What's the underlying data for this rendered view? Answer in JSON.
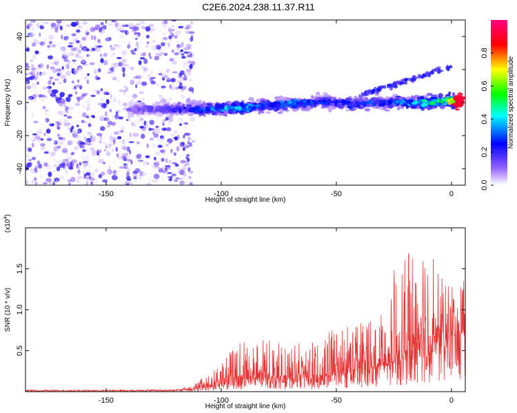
{
  "title": "C2E6.2024.238.11.37.R11",
  "chart_data": [
    {
      "type": "heatmap",
      "xlabel": "Height of straight line (km)",
      "ylabel": "Frequency (Hz)",
      "xlim": [
        -185,
        6
      ],
      "ylim": [
        -50,
        50
      ],
      "xticks": [
        -150,
        -100,
        -50,
        0
      ],
      "yticks": [
        -40,
        -20,
        0,
        20,
        40
      ],
      "colorbar": {
        "label": "Normalized spectral amplitude",
        "range": [
          0,
          1
        ],
        "ticks": [
          "0.0",
          "0.2",
          "0.4",
          "0.6",
          "0.8"
        ],
        "colors": [
          "#ffffff",
          "#9966ff",
          "#0000ff",
          "#00ffff",
          "#00ff00",
          "#ffff00",
          "#ff0000",
          "#ff0080"
        ]
      },
      "noise_region_x": [
        -185,
        -112
      ],
      "band": {
        "x": [
          -140,
          -120,
          -100,
          -90,
          -80,
          -70,
          -60,
          -50,
          -40,
          -30,
          -20,
          -10,
          0
        ],
        "center_hz": [
          -4,
          -4,
          -4,
          -3,
          -2,
          -1,
          0,
          0,
          -1,
          0,
          0,
          0,
          1
        ],
        "peak_amplitude": [
          0.15,
          0.25,
          0.45,
          0.45,
          0.35,
          0.4,
          0.35,
          0.3,
          0.35,
          0.35,
          0.45,
          0.6,
          1.0
        ]
      }
    },
    {
      "type": "line",
      "xlabel": "Height of straight line (km)",
      "ylabel": "SNR (10 * v/v)",
      "scale_label": "(x10",
      "scale_exp": "4",
      "xlim": [
        -185,
        6
      ],
      "ylim": [
        0,
        20000
      ],
      "xticks": [
        -150,
        -100,
        -50,
        0
      ],
      "yticks": [
        5000,
        10000,
        15000
      ],
      "ytick_labels": [
        "0.5",
        "1.0",
        "1.5"
      ],
      "series": [
        {
          "color": "#e83030",
          "x": [
            -185,
            -150,
            -120,
            -112,
            -105,
            -100,
            -95,
            -90,
            -85,
            -80,
            -75,
            -70,
            -65,
            -60,
            -55,
            -50,
            -45,
            -40,
            -35,
            -30,
            -25,
            -20,
            -15,
            -10,
            -5,
            0,
            6
          ],
          "baseline": [
            100,
            100,
            150,
            300,
            600,
            900,
            1400,
            1600,
            1600,
            1700,
            1600,
            1500,
            1700,
            1600,
            1700,
            2000,
            2200,
            2500,
            2700,
            3000,
            3500,
            4000,
            5000,
            5500,
            6000,
            6500,
            7000
          ],
          "envelope": [
            250,
            250,
            300,
            800,
            2500,
            3200,
            5500,
            6500,
            6000,
            6500,
            6000,
            5500,
            6500,
            6000,
            7000,
            8000,
            8500,
            9000,
            10000,
            10500,
            15000,
            16000,
            20000,
            19000,
            14000,
            13500,
            13500
          ]
        }
      ]
    }
  ]
}
